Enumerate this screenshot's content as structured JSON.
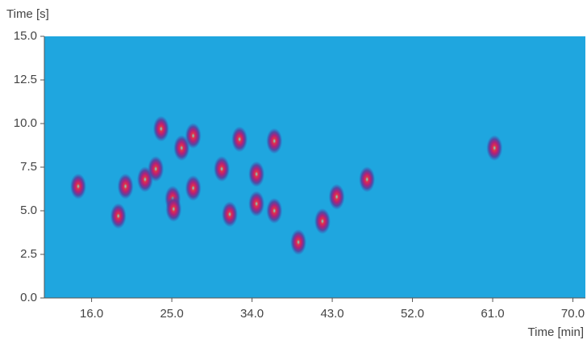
{
  "chart_data": {
    "type": "scatter",
    "y_label": "Time [s]",
    "x_label": "Time [min]",
    "color": "#1fa6df",
    "xlim": [
      10.7,
      71.4
    ],
    "ylim": [
      0,
      15
    ],
    "xticks": [
      {
        "value": 16,
        "label": "16.0"
      },
      {
        "value": 25,
        "label": "25.0"
      },
      {
        "value": 34,
        "label": "34.0"
      },
      {
        "value": 43,
        "label": "43.0"
      },
      {
        "value": 52,
        "label": "52.0"
      },
      {
        "value": 61,
        "label": "61.0"
      },
      {
        "value": 70,
        "label": "70.0"
      }
    ],
    "yticks": [
      {
        "value": 0,
        "label": "0.0"
      },
      {
        "value": 2.5,
        "label": "2.5"
      },
      {
        "value": 5,
        "label": "5.0"
      },
      {
        "value": 7.5,
        "label": "7.5"
      },
      {
        "value": 10,
        "label": "10.0"
      },
      {
        "value": 12.5,
        "label": "12.5"
      },
      {
        "value": 15,
        "label": "15.0"
      }
    ],
    "x": [
      14.5,
      19.0,
      19.8,
      22.0,
      23.2,
      23.8,
      25.1,
      25.2,
      26.1,
      27.4,
      27.4,
      30.6,
      31.5,
      32.6,
      34.5,
      34.5,
      36.5,
      36.5,
      43.5,
      46.9,
      41.9,
      39.2,
      61.2
    ],
    "values": [
      6.4,
      4.7,
      6.4,
      6.8,
      7.4,
      9.7,
      5.7,
      5.1,
      8.6,
      9.3,
      6.3,
      7.4,
      4.8,
      9.1,
      7.1,
      5.4,
      5.0,
      9.0,
      5.8,
      6.8,
      4.4,
      3.2,
      8.6
    ]
  }
}
